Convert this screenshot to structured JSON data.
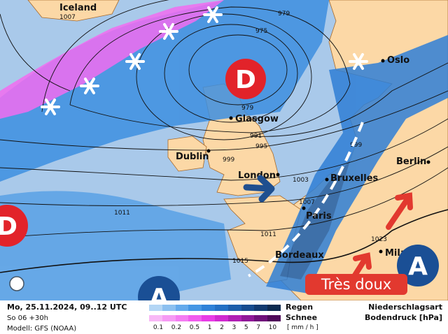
{
  "map": {
    "cities": [
      {
        "name": "Iceland"
      },
      {
        "name": "Oslo"
      },
      {
        "name": "Glasgow"
      },
      {
        "name": "Dublin"
      },
      {
        "name": "London"
      },
      {
        "name": "Bruxelles"
      },
      {
        "name": "Paris"
      },
      {
        "name": "Berlin"
      },
      {
        "name": "Bordeaux"
      },
      {
        "name": "Milan"
      }
    ],
    "isobars": [
      "1007",
      "979",
      "975",
      "979",
      "991",
      "995",
      "999",
      "1003",
      "999",
      "1007",
      "1011",
      "1011",
      "1015",
      "1023"
    ],
    "pressure_systems": {
      "low1": "D",
      "low2": "D",
      "high1": "A",
      "high2": "A"
    },
    "callout": "Très doux",
    "colors": {
      "sea": "#a9c9ea",
      "land": "#fcd8a6",
      "rain": "#3d8fe0",
      "snow": "#f26cf0",
      "low": "#e2232a",
      "high": "#1a4f95",
      "callout": "#e2392f"
    }
  },
  "legend": {
    "date": "Mo, 25.11.2024, 09..12 UTC",
    "run": "So 06 +30h",
    "model": "Modell: GFS (NOAA)",
    "rain_label": "Regen",
    "snow_label": "Schnee",
    "scale": [
      "0.1",
      "0.2",
      "0.5",
      "1",
      "2",
      "3",
      "5",
      "7",
      "10"
    ],
    "unit": "[ mm / h ]",
    "type_label": "Niederschlagsart",
    "pressure_label": "Bodendruck [hPa]",
    "rain_colors": [
      "#b4d6f5",
      "#8cc0f0",
      "#64aaec",
      "#4496e4",
      "#2f82d8",
      "#2470c4",
      "#1d5eaa",
      "#174c8f",
      "#113a70",
      "#0c2a50"
    ],
    "snow_colors": [
      "#f8b8f6",
      "#f69af4",
      "#f47cf2",
      "#f05cee",
      "#e83ce6",
      "#d02ad0",
      "#b020b4",
      "#901898",
      "#70107a",
      "#500a5a"
    ]
  }
}
